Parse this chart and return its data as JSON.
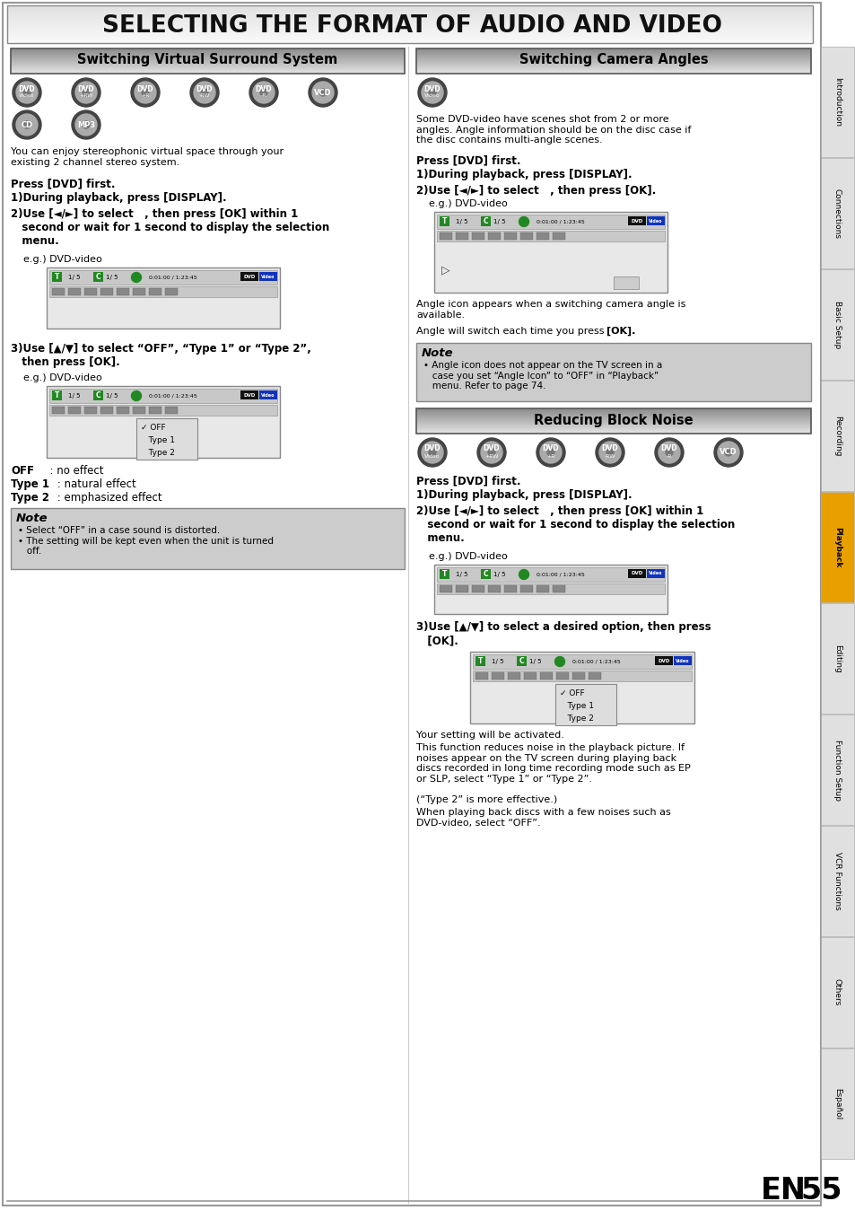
{
  "title": "SELECTING THE FORMAT OF AUDIO AND VIDEO",
  "bg_color": "#ffffff",
  "sidebar_labels": [
    "Introduction",
    "Connections",
    "Basic Setup",
    "Recording",
    "Playback",
    "Editing",
    "Function Setup",
    "VCR Functions",
    "Others",
    "Español"
  ],
  "sidebar_active": "Playback",
  "left_section_title": "Switching Virtual Surround System",
  "right_section_title": "Switching Camera Angles",
  "bottom_section_title": "Reducing Block Noise",
  "title_color": "#222222",
  "section_header_text_color": "#000000",
  "bold_text_color": "#000000",
  "note_bg": "#cccccc",
  "screen_bg": "#e8e8e8",
  "screen_topbar_bg": "#c8c8c8",
  "icon_outer": "#444444",
  "icon_inner": "#aaaaaa",
  "icon_hole": "#777777",
  "dvd_badge_bg": "#111111",
  "video_badge_bg": "#1133bb",
  "green_badge": "#228822",
  "sidebar_active_bg": "#e8a000",
  "sidebar_inactive_bg": "#e0e0e0"
}
